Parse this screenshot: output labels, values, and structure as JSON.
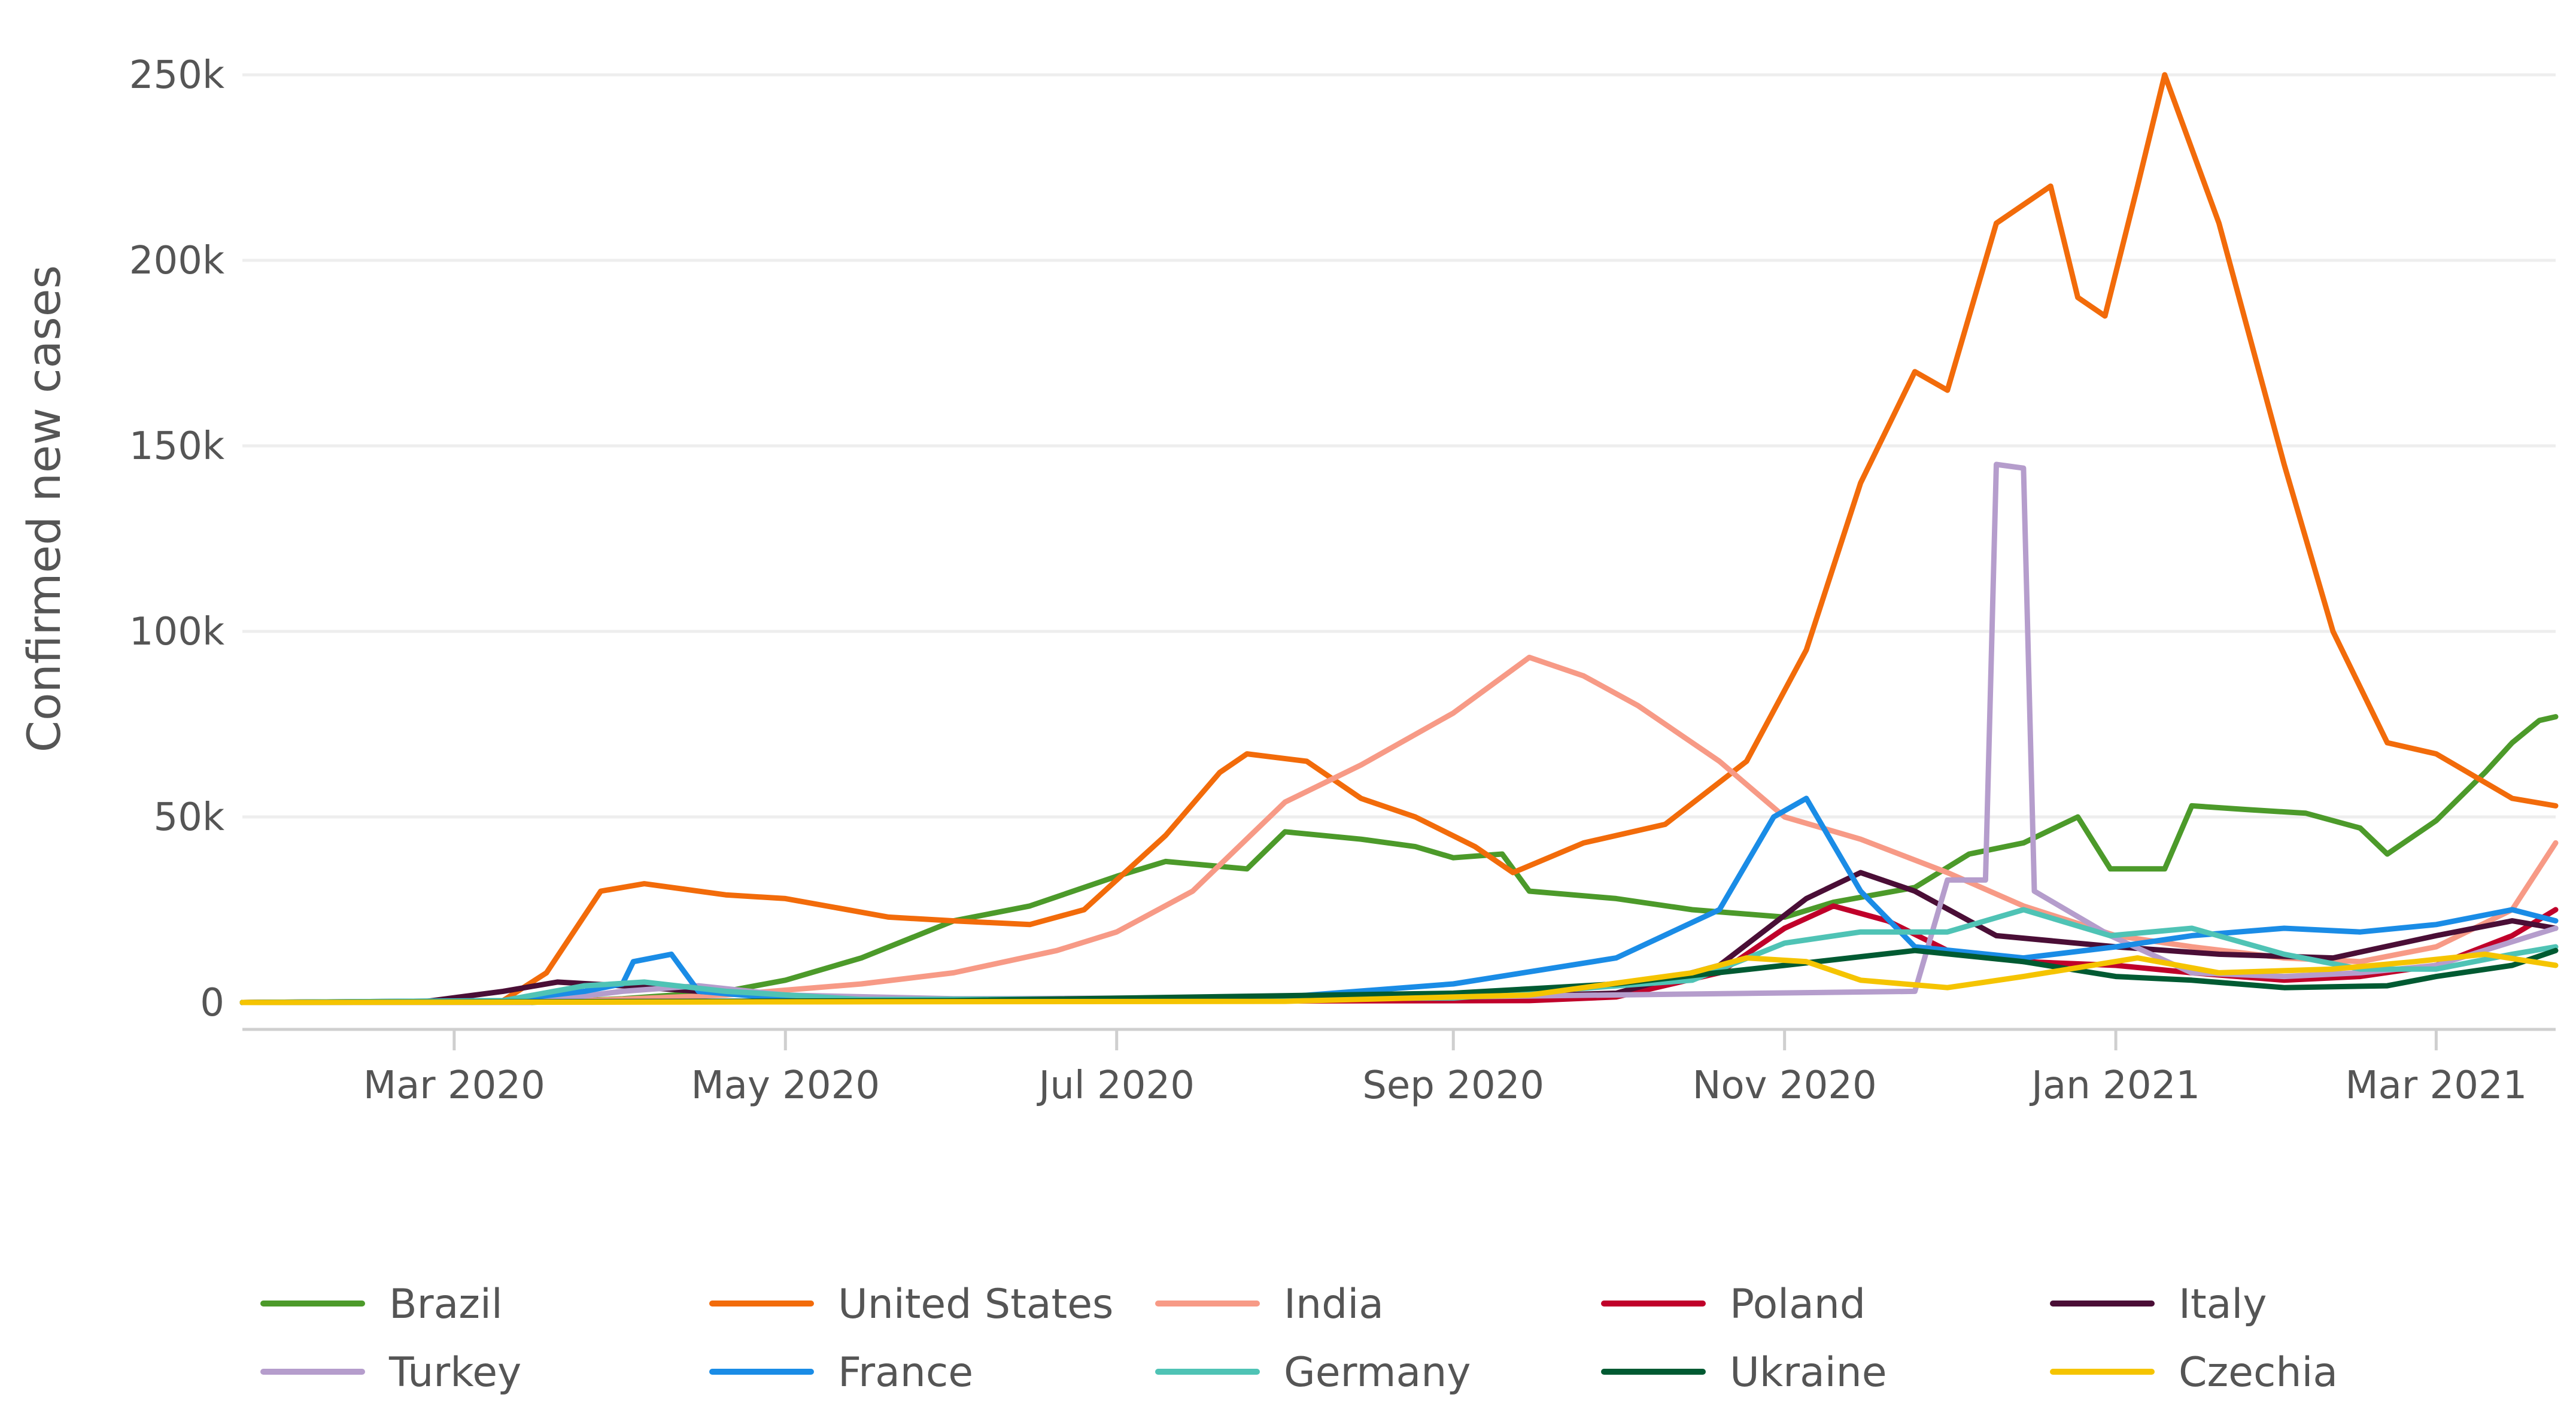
{
  "chart_data": {
    "type": "line",
    "title": "",
    "xlabel": "",
    "ylabel": "Confirmed new cases",
    "ylim": [
      0,
      250000
    ],
    "xlim": [
      "2020-01-22",
      "2021-03-23"
    ],
    "yticks": [
      {
        "value": 0,
        "label": "0"
      },
      {
        "value": 50000,
        "label": "50k"
      },
      {
        "value": 100000,
        "label": "100k"
      },
      {
        "value": 150000,
        "label": "150k"
      },
      {
        "value": 200000,
        "label": "200k"
      },
      {
        "value": 250000,
        "label": "250k"
      }
    ],
    "xticks": [
      {
        "date": "2020-03-01",
        "label": "Mar 2020"
      },
      {
        "date": "2020-05-01",
        "label": "May 2020"
      },
      {
        "date": "2020-07-01",
        "label": "Jul 2020"
      },
      {
        "date": "2020-09-01",
        "label": "Sep 2020"
      },
      {
        "date": "2020-11-01",
        "label": "Nov 2020"
      },
      {
        "date": "2021-01-01",
        "label": "Jan 2021"
      },
      {
        "date": "2021-03-01",
        "label": "Mar 2021"
      }
    ],
    "legend_position": "bottom",
    "series": [
      {
        "name": "Brazil",
        "color": "#4c9a2a",
        "points": [
          [
            "2020-01-22",
            0
          ],
          [
            "2020-03-15",
            0
          ],
          [
            "2020-04-01",
            1000
          ],
          [
            "2020-04-20",
            3000
          ],
          [
            "2020-05-01",
            6000
          ],
          [
            "2020-05-15",
            12000
          ],
          [
            "2020-06-01",
            22000
          ],
          [
            "2020-06-15",
            26000
          ],
          [
            "2020-07-01",
            34000
          ],
          [
            "2020-07-10",
            38000
          ],
          [
            "2020-07-25",
            36000
          ],
          [
            "2020-08-01",
            46000
          ],
          [
            "2020-08-15",
            44000
          ],
          [
            "2020-08-25",
            42000
          ],
          [
            "2020-09-01",
            39000
          ],
          [
            "2020-09-10",
            40000
          ],
          [
            "2020-09-15",
            30000
          ],
          [
            "2020-10-01",
            28000
          ],
          [
            "2020-10-15",
            25000
          ],
          [
            "2020-11-01",
            23000
          ],
          [
            "2020-11-10",
            27000
          ],
          [
            "2020-11-25",
            31000
          ],
          [
            "2020-12-05",
            40000
          ],
          [
            "2020-12-15",
            43000
          ],
          [
            "2020-12-25",
            50000
          ],
          [
            "2020-12-31",
            36000
          ],
          [
            "2021-01-10",
            36000
          ],
          [
            "2021-01-15",
            53000
          ],
          [
            "2021-01-25",
            52000
          ],
          [
            "2021-02-05",
            51000
          ],
          [
            "2021-02-15",
            47000
          ],
          [
            "2021-02-20",
            40000
          ],
          [
            "2021-03-01",
            49000
          ],
          [
            "2021-03-10",
            62000
          ],
          [
            "2021-03-15",
            70000
          ],
          [
            "2021-03-20",
            76000
          ],
          [
            "2021-03-23",
            77000
          ]
        ]
      },
      {
        "name": "United States",
        "color": "#f26b0a",
        "points": [
          [
            "2020-01-22",
            0
          ],
          [
            "2020-03-10",
            500
          ],
          [
            "2020-03-18",
            8000
          ],
          [
            "2020-03-28",
            30000
          ],
          [
            "2020-04-05",
            32000
          ],
          [
            "2020-04-20",
            29000
          ],
          [
            "2020-05-01",
            28000
          ],
          [
            "2020-05-20",
            23000
          ],
          [
            "2020-06-01",
            22000
          ],
          [
            "2020-06-15",
            21000
          ],
          [
            "2020-06-25",
            25000
          ],
          [
            "2020-07-10",
            45000
          ],
          [
            "2020-07-20",
            62000
          ],
          [
            "2020-07-25",
            67000
          ],
          [
            "2020-08-05",
            65000
          ],
          [
            "2020-08-15",
            55000
          ],
          [
            "2020-08-25",
            50000
          ],
          [
            "2020-09-05",
            42000
          ],
          [
            "2020-09-12",
            35000
          ],
          [
            "2020-09-25",
            43000
          ],
          [
            "2020-10-10",
            48000
          ],
          [
            "2020-10-25",
            65000
          ],
          [
            "2020-11-05",
            95000
          ],
          [
            "2020-11-15",
            140000
          ],
          [
            "2020-11-25",
            170000
          ],
          [
            "2020-12-01",
            165000
          ],
          [
            "2020-12-10",
            210000
          ],
          [
            "2020-12-20",
            220000
          ],
          [
            "2020-12-25",
            190000
          ],
          [
            "2020-12-30",
            185000
          ],
          [
            "2021-01-05",
            220000
          ],
          [
            "2021-01-10",
            250000
          ],
          [
            "2021-01-20",
            210000
          ],
          [
            "2021-02-01",
            145000
          ],
          [
            "2021-02-10",
            100000
          ],
          [
            "2021-02-20",
            70000
          ],
          [
            "2021-03-01",
            67000
          ],
          [
            "2021-03-15",
            55000
          ],
          [
            "2021-03-23",
            53000
          ]
        ]
      },
      {
        "name": "India",
        "color": "#f79a86",
        "points": [
          [
            "2020-01-22",
            0
          ],
          [
            "2020-03-20",
            200
          ],
          [
            "2020-04-20",
            2000
          ],
          [
            "2020-05-15",
            5000
          ],
          [
            "2020-06-01",
            8000
          ],
          [
            "2020-06-20",
            14000
          ],
          [
            "2020-07-01",
            19000
          ],
          [
            "2020-07-15",
            30000
          ],
          [
            "2020-08-01",
            54000
          ],
          [
            "2020-08-15",
            64000
          ],
          [
            "2020-09-01",
            78000
          ],
          [
            "2020-09-15",
            93000
          ],
          [
            "2020-09-25",
            88000
          ],
          [
            "2020-10-05",
            80000
          ],
          [
            "2020-10-20",
            65000
          ],
          [
            "2020-11-01",
            50000
          ],
          [
            "2020-11-15",
            44000
          ],
          [
            "2020-12-01",
            35000
          ],
          [
            "2020-12-15",
            26000
          ],
          [
            "2021-01-01",
            18000
          ],
          [
            "2021-01-15",
            15000
          ],
          [
            "2021-02-01",
            12000
          ],
          [
            "2021-02-15",
            11000
          ],
          [
            "2021-03-01",
            15000
          ],
          [
            "2021-03-15",
            25000
          ],
          [
            "2021-03-23",
            43000
          ]
        ]
      },
      {
        "name": "Poland",
        "color": "#c0002a",
        "points": [
          [
            "2020-01-22",
            0
          ],
          [
            "2020-09-15",
            500
          ],
          [
            "2020-10-01",
            1500
          ],
          [
            "2020-10-20",
            8000
          ],
          [
            "2020-11-01",
            20000
          ],
          [
            "2020-11-10",
            26000
          ],
          [
            "2020-11-20",
            22000
          ],
          [
            "2020-12-01",
            14000
          ],
          [
            "2020-12-15",
            11000
          ],
          [
            "2021-01-01",
            10000
          ],
          [
            "2021-01-15",
            8000
          ],
          [
            "2021-02-01",
            6000
          ],
          [
            "2021-02-15",
            7000
          ],
          [
            "2021-03-01",
            10000
          ],
          [
            "2021-03-15",
            18000
          ],
          [
            "2021-03-23",
            25000
          ]
        ]
      },
      {
        "name": "Italy",
        "color": "#4a0e36",
        "points": [
          [
            "2020-01-22",
            0
          ],
          [
            "2020-02-25",
            300
          ],
          [
            "2020-03-10",
            3000
          ],
          [
            "2020-03-20",
            5500
          ],
          [
            "2020-04-01",
            4500
          ],
          [
            "2020-04-15",
            3000
          ],
          [
            "2020-05-01",
            1500
          ],
          [
            "2020-06-01",
            300
          ],
          [
            "2020-09-01",
            1300
          ],
          [
            "2020-10-01",
            2500
          ],
          [
            "2020-10-20",
            10000
          ],
          [
            "2020-11-05",
            28000
          ],
          [
            "2020-11-15",
            35000
          ],
          [
            "2020-11-25",
            30000
          ],
          [
            "2020-12-10",
            18000
          ],
          [
            "2021-01-01",
            15000
          ],
          [
            "2021-01-20",
            13000
          ],
          [
            "2021-02-10",
            12000
          ],
          [
            "2021-03-01",
            18000
          ],
          [
            "2021-03-15",
            22000
          ],
          [
            "2021-03-23",
            20000
          ]
        ]
      },
      {
        "name": "Turkey",
        "color": "#b59dcc",
        "points": [
          [
            "2020-01-22",
            0
          ],
          [
            "2020-03-15",
            0
          ],
          [
            "2020-04-01",
            3000
          ],
          [
            "2020-04-15",
            4500
          ],
          [
            "2020-05-01",
            2000
          ],
          [
            "2020-06-01",
            1000
          ],
          [
            "2020-09-01",
            1500
          ],
          [
            "2020-11-25",
            3000
          ],
          [
            "2020-12-01",
            33000
          ],
          [
            "2020-12-08",
            33000
          ],
          [
            "2020-12-10",
            145000
          ],
          [
            "2020-12-15",
            144000
          ],
          [
            "2020-12-17",
            30000
          ],
          [
            "2020-12-31",
            18000
          ],
          [
            "2021-01-15",
            8000
          ],
          [
            "2021-02-01",
            7000
          ],
          [
            "2021-02-15",
            8000
          ],
          [
            "2021-03-01",
            10000
          ],
          [
            "2021-03-23",
            20000
          ]
        ]
      },
      {
        "name": "France",
        "color": "#1a8ce6",
        "points": [
          [
            "2020-01-22",
            0
          ],
          [
            "2020-03-10",
            500
          ],
          [
            "2020-03-25",
            3000
          ],
          [
            "2020-04-01",
            5000
          ],
          [
            "2020-04-03",
            11000
          ],
          [
            "2020-04-10",
            13000
          ],
          [
            "2020-04-15",
            3000
          ],
          [
            "2020-05-01",
            1000
          ],
          [
            "2020-06-01",
            500
          ],
          [
            "2020-08-01",
            1500
          ],
          [
            "2020-09-01",
            5000
          ],
          [
            "2020-10-01",
            12000
          ],
          [
            "2020-10-20",
            25000
          ],
          [
            "2020-10-30",
            50000
          ],
          [
            "2020-11-05",
            55000
          ],
          [
            "2020-11-15",
            30000
          ],
          [
            "2020-11-25",
            15000
          ],
          [
            "2020-12-15",
            12000
          ],
          [
            "2021-01-01",
            15000
          ],
          [
            "2021-01-15",
            18000
          ],
          [
            "2021-02-01",
            20000
          ],
          [
            "2021-02-15",
            19000
          ],
          [
            "2021-03-01",
            21000
          ],
          [
            "2021-03-15",
            25000
          ],
          [
            "2021-03-23",
            22000
          ]
        ]
      },
      {
        "name": "Germany",
        "color": "#4fc3b5",
        "points": [
          [
            "2020-01-22",
            0
          ],
          [
            "2020-03-10",
            500
          ],
          [
            "2020-03-25",
            4500
          ],
          [
            "2020-04-05",
            5500
          ],
          [
            "2020-04-20",
            3000
          ],
          [
            "2020-05-15",
            800
          ],
          [
            "2020-09-01",
            1200
          ],
          [
            "2020-10-15",
            6000
          ],
          [
            "2020-11-01",
            16000
          ],
          [
            "2020-11-15",
            19000
          ],
          [
            "2020-12-01",
            19000
          ],
          [
            "2020-12-15",
            25000
          ],
          [
            "2020-12-31",
            18000
          ],
          [
            "2021-01-15",
            20000
          ],
          [
            "2021-02-01",
            13000
          ],
          [
            "2021-02-15",
            9000
          ],
          [
            "2021-03-01",
            9000
          ],
          [
            "2021-03-15",
            13000
          ],
          [
            "2021-03-23",
            15000
          ]
        ]
      },
      {
        "name": "Ukraine",
        "color": "#005a32",
        "points": [
          [
            "2020-01-22",
            0
          ],
          [
            "2020-06-01",
            500
          ],
          [
            "2020-09-01",
            2500
          ],
          [
            "2020-10-01",
            5000
          ],
          [
            "2020-11-01",
            10000
          ],
          [
            "2020-11-25",
            14000
          ],
          [
            "2020-12-15",
            11000
          ],
          [
            "2021-01-01",
            7000
          ],
          [
            "2021-01-15",
            6000
          ],
          [
            "2021-02-01",
            4000
          ],
          [
            "2021-02-20",
            4500
          ],
          [
            "2021-03-01",
            7000
          ],
          [
            "2021-03-15",
            10000
          ],
          [
            "2021-03-23",
            14000
          ]
        ]
      },
      {
        "name": "Czechia",
        "color": "#f5c400",
        "points": [
          [
            "2020-01-22",
            0
          ],
          [
            "2020-08-01",
            300
          ],
          [
            "2020-09-15",
            2000
          ],
          [
            "2020-10-15",
            8000
          ],
          [
            "2020-10-25",
            12000
          ],
          [
            "2020-11-05",
            11000
          ],
          [
            "2020-11-15",
            6000
          ],
          [
            "2020-12-01",
            4000
          ],
          [
            "2020-12-15",
            7000
          ],
          [
            "2021-01-05",
            12000
          ],
          [
            "2021-01-20",
            8000
          ],
          [
            "2021-02-10",
            9000
          ],
          [
            "2021-02-25",
            11000
          ],
          [
            "2021-03-10",
            13000
          ],
          [
            "2021-03-23",
            10000
          ]
        ]
      }
    ]
  }
}
